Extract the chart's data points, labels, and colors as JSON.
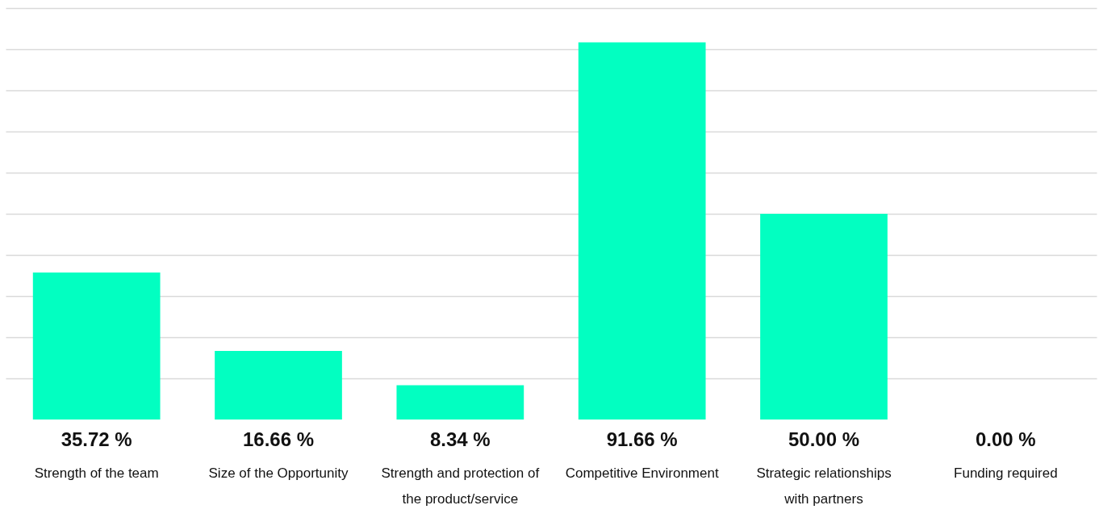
{
  "chart_data": {
    "type": "bar",
    "categories": [
      "Strength of the team",
      "Size of the Opportunity",
      "Strength and protection of the product/service",
      "Competitive Environment",
      "Strategic relationships with partners",
      "Funding required"
    ],
    "values": [
      35.72,
      16.66,
      8.34,
      91.66,
      50.0,
      0.0
    ],
    "value_labels": [
      "35.72 %",
      "16.66 %",
      "8.34 %",
      "91.66 %",
      "50.00 %",
      "0.00 %"
    ],
    "color": "#02ffc1",
    "ylim": [
      0,
      100
    ],
    "yticks": [
      {
        "value": 10,
        "label": null
      },
      {
        "value": 20,
        "label": null
      },
      {
        "value": 30,
        "label": null
      },
      {
        "value": 40,
        "label": null
      },
      {
        "value": 50,
        "label": null
      },
      {
        "value": 60,
        "label": null
      },
      {
        "value": 70,
        "label": null
      },
      {
        "value": 80,
        "label": null
      },
      {
        "value": 90,
        "label": null
      },
      {
        "value": 100,
        "label": null
      }
    ],
    "grid": "y",
    "tick_labels": "x"
  }
}
